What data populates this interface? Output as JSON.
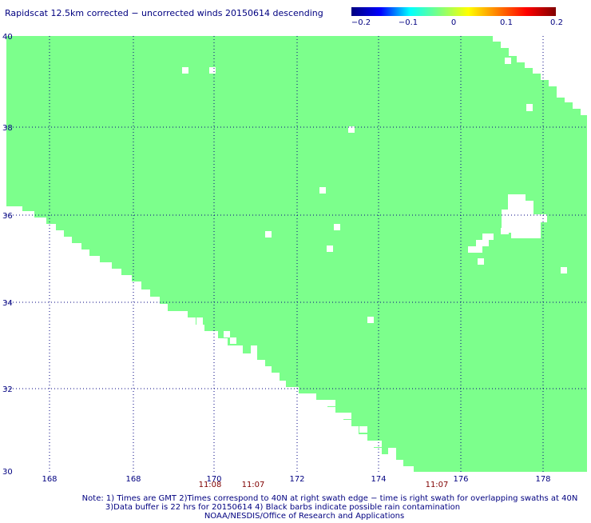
{
  "title": "Rapidscat 12.5km corrected − uncorrected winds 20150614 descending",
  "colorbar": {
    "ticks": [
      "−0.2",
      "−0.1",
      "0",
      "0.1",
      "0.2"
    ],
    "min": -0.2,
    "max": 0.2,
    "stops": [
      "#000080",
      "#0000ff",
      "#00ffff",
      "#7cff80",
      "#ffff00",
      "#ff7f00",
      "#ff0000",
      "#800000"
    ]
  },
  "map": {
    "lat_range": [
      30,
      40
    ],
    "lon_range": [
      166.5,
      179
    ],
    "lat_ticks": [
      "40",
      "38",
      "36",
      "34",
      "32",
      "30"
    ],
    "lon_ticks": [
      "168",
      "168",
      "170",
      "172",
      "174",
      "176",
      "178"
    ],
    "data_color": "#7cff8c",
    "gridline_color": "#000080"
  },
  "times": [
    {
      "label": "11:08",
      "color": "#800000"
    },
    {
      "label": "11:07",
      "color": "#800000"
    },
    {
      "label": "11:07",
      "color": "#800000"
    }
  ],
  "notes": [
    "Note: 1) Times are GMT 2)Times correspond to 40N at right swath edge − time is right swath for overlapping swaths at 40N",
    "3)Data buffer is 22 hrs for 20150614 4) Black barbs indicate possible rain contamination",
    "NOAA/NESDIS/Office of Research and Applications"
  ]
}
